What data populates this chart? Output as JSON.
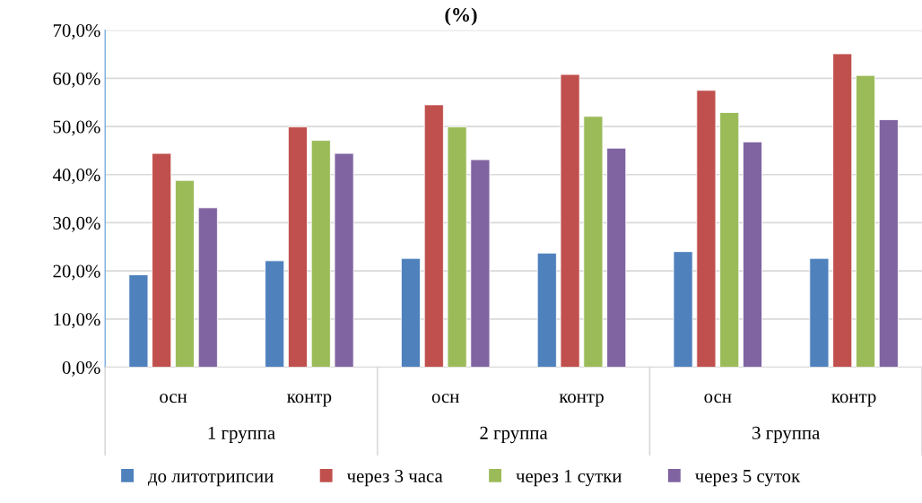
{
  "chart_data": {
    "type": "bar",
    "title": "(%)",
    "categories": [
      "осн",
      "контр",
      "осн",
      "контр",
      "осн",
      "контр"
    ],
    "annotations": [
      "1 группа",
      "2 группа",
      "3 группа"
    ],
    "series": [
      {
        "name": "до литотрипсии",
        "color": "#4f81bd",
        "values": [
          19.2,
          22.1,
          22.6,
          23.7,
          24.0,
          22.6
        ]
      },
      {
        "name": "через 3 часа",
        "color": "#c0504d",
        "values": [
          44.4,
          49.9,
          54.5,
          60.8,
          57.5,
          65.1
        ]
      },
      {
        "name": "через 1 сутки",
        "color": "#9bbb59",
        "values": [
          38.8,
          47.1,
          49.9,
          52.1,
          52.9,
          60.6
        ]
      },
      {
        "name": "через 5 суток",
        "color": "#8064a2",
        "values": [
          33.1,
          44.4,
          43.1,
          45.5,
          46.8,
          51.4
        ]
      }
    ],
    "ylim": [
      0,
      70
    ],
    "yticks": [
      {
        "value": 0,
        "label": "0,0%"
      },
      {
        "value": 10,
        "label": "10,0%"
      },
      {
        "value": 20,
        "label": "20,0%"
      },
      {
        "value": 30,
        "label": "30,0%"
      },
      {
        "value": 40,
        "label": "40,0%"
      },
      {
        "value": 50,
        "label": "50,0%"
      },
      {
        "value": 60,
        "label": "60,0%"
      },
      {
        "value": 70,
        "label": "70,0%"
      }
    ],
    "grid": "y",
    "legend": "bottom"
  }
}
